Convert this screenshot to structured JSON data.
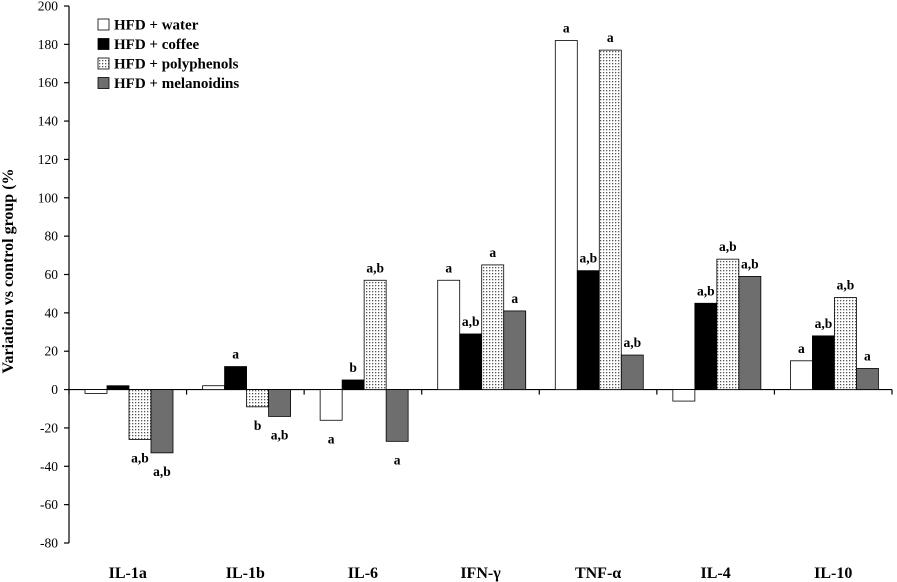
{
  "chart_data": {
    "type": "bar",
    "ylabel": "Variation vs control group (%",
    "ylim": [
      -80,
      200
    ],
    "yticks": [
      -80,
      -60,
      -40,
      -20,
      0,
      20,
      40,
      60,
      80,
      100,
      120,
      140,
      160,
      180,
      200
    ],
    "categories": [
      "IL-1a",
      "IL-1b",
      "IL-6",
      "IFN-γ",
      "TNF-α",
      "IL-4",
      "IL-10"
    ],
    "legend_position": "top-left",
    "series": [
      {
        "name": "HFD + water",
        "style": "white",
        "values": [
          -2,
          2,
          -16,
          57,
          182,
          -6,
          15
        ],
        "labels": [
          "",
          "",
          "a",
          "a",
          "a",
          "",
          "a"
        ]
      },
      {
        "name": "HFD + coffee",
        "style": "black",
        "values": [
          2,
          12,
          5,
          29,
          62,
          45,
          28
        ],
        "labels": [
          "",
          "a",
          "b",
          "a,b",
          "a,b",
          "a,b",
          "a,b"
        ]
      },
      {
        "name": "HFD + polyphenols",
        "style": "dotted",
        "values": [
          -26,
          -9,
          57,
          65,
          177,
          68,
          48
        ],
        "labels": [
          "a,b",
          "b",
          "a,b",
          "a",
          "a",
          "a,b",
          "a,b"
        ]
      },
      {
        "name": "HFD + melanoidins",
        "style": "gray",
        "values": [
          -33,
          -14,
          -27,
          41,
          18,
          59,
          11
        ],
        "labels": [
          "a,b",
          "a,b",
          "a",
          "a",
          "a,b",
          "a,b",
          "a"
        ]
      }
    ]
  },
  "colors": {
    "black": "#000000",
    "gray": "#6e6e6e",
    "white": "#ffffff"
  }
}
